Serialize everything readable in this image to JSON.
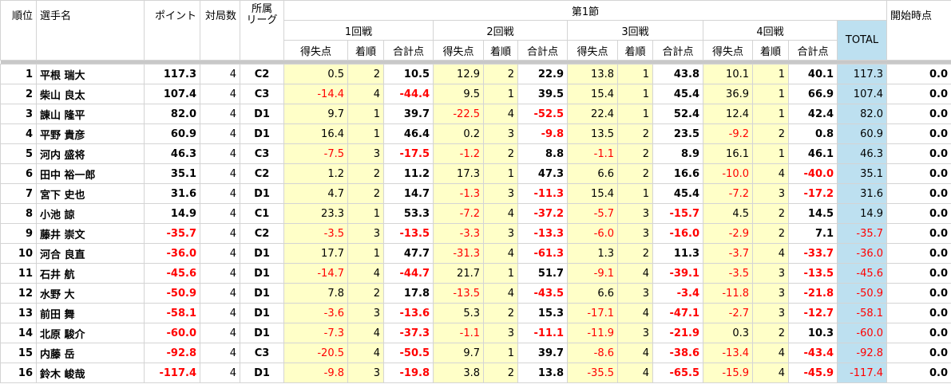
{
  "table": {
    "columns": [
      "順位",
      "選手名",
      "ポイント",
      "対局数",
      "所属\nリーグ"
    ],
    "section": "第1節",
    "rounds": [
      "1回戦",
      "2回戦",
      "3回戦",
      "4回戦"
    ],
    "sub_columns": [
      "得失点",
      "着順",
      "合計点"
    ],
    "total": "TOTAL",
    "start": "開始時点",
    "rows": [
      [
        "1",
        "平根 瑞大",
        "117.3",
        "4",
        "C2",
        "0.5",
        "2",
        "10.5",
        "12.9",
        "2",
        "22.9",
        "13.8",
        "1",
        "43.8",
        "10.1",
        "1",
        "40.1",
        "117.3",
        "0.0"
      ],
      [
        "2",
        "柴山 良太",
        "107.4",
        "4",
        "C3",
        "-14.4",
        "4",
        "-44.4",
        "9.5",
        "1",
        "39.5",
        "15.4",
        "1",
        "45.4",
        "36.9",
        "1",
        "66.9",
        "107.4",
        "0.0"
      ],
      [
        "3",
        "諌山 隆平",
        "82.0",
        "4",
        "D1",
        "9.7",
        "1",
        "39.7",
        "-22.5",
        "4",
        "-52.5",
        "22.4",
        "1",
        "52.4",
        "12.4",
        "1",
        "42.4",
        "82.0",
        "0.0"
      ],
      [
        "4",
        "平野 貴彦",
        "60.9",
        "4",
        "D1",
        "16.4",
        "1",
        "46.4",
        "0.2",
        "3",
        "-9.8",
        "13.5",
        "2",
        "23.5",
        "-9.2",
        "2",
        "0.8",
        "60.9",
        "0.0"
      ],
      [
        "5",
        "河内 盛将",
        "46.3",
        "4",
        "C3",
        "-7.5",
        "3",
        "-17.5",
        "-1.2",
        "2",
        "8.8",
        "-1.1",
        "2",
        "8.9",
        "16.1",
        "1",
        "46.1",
        "46.3",
        "0.0"
      ],
      [
        "6",
        "田中 裕一郎",
        "35.1",
        "4",
        "C2",
        "1.2",
        "2",
        "11.2",
        "17.3",
        "1",
        "47.3",
        "6.6",
        "2",
        "16.6",
        "-10.0",
        "4",
        "-40.0",
        "35.1",
        "0.0"
      ],
      [
        "7",
        "宮下 史也",
        "31.6",
        "4",
        "D1",
        "4.7",
        "2",
        "14.7",
        "-1.3",
        "3",
        "-11.3",
        "15.4",
        "1",
        "45.4",
        "-7.2",
        "3",
        "-17.2",
        "31.6",
        "0.0"
      ],
      [
        "8",
        "小池 諒",
        "14.9",
        "4",
        "C1",
        "23.3",
        "1",
        "53.3",
        "-7.2",
        "4",
        "-37.2",
        "-5.7",
        "3",
        "-15.7",
        "4.5",
        "2",
        "14.5",
        "14.9",
        "0.0"
      ],
      [
        "9",
        "藤井 崇文",
        "-35.7",
        "4",
        "C2",
        "-3.5",
        "3",
        "-13.5",
        "-3.3",
        "3",
        "-13.3",
        "-6.0",
        "3",
        "-16.0",
        "-2.9",
        "2",
        "7.1",
        "-35.7",
        "0.0"
      ],
      [
        "10",
        "河合 良直",
        "-36.0",
        "4",
        "D1",
        "17.7",
        "1",
        "47.7",
        "-31.3",
        "4",
        "-61.3",
        "1.3",
        "2",
        "11.3",
        "-3.7",
        "4",
        "-33.7",
        "-36.0",
        "0.0"
      ],
      [
        "11",
        "石井 航",
        "-45.6",
        "4",
        "D1",
        "-14.7",
        "4",
        "-44.7",
        "21.7",
        "1",
        "51.7",
        "-9.1",
        "4",
        "-39.1",
        "-3.5",
        "3",
        "-13.5",
        "-45.6",
        "0.0"
      ],
      [
        "12",
        "水野 大",
        "-50.9",
        "4",
        "D1",
        "7.8",
        "2",
        "17.8",
        "-13.5",
        "4",
        "-43.5",
        "6.6",
        "3",
        "-3.4",
        "-11.8",
        "3",
        "-21.8",
        "-50.9",
        "0.0"
      ],
      [
        "13",
        "前田 舞",
        "-58.1",
        "4",
        "D1",
        "-3.6",
        "3",
        "-13.6",
        "5.3",
        "2",
        "15.3",
        "-17.1",
        "4",
        "-47.1",
        "-2.7",
        "3",
        "-12.7",
        "-58.1",
        "0.0"
      ],
      [
        "14",
        "北原 駿介",
        "-60.0",
        "4",
        "D1",
        "-7.3",
        "4",
        "-37.3",
        "-1.1",
        "3",
        "-11.1",
        "-11.9",
        "3",
        "-21.9",
        "0.3",
        "2",
        "10.3",
        "-60.0",
        "0.0"
      ],
      [
        "15",
        "内藤 岳",
        "-92.8",
        "4",
        "C3",
        "-20.5",
        "4",
        "-50.5",
        "9.7",
        "1",
        "39.7",
        "-8.6",
        "4",
        "-38.6",
        "-13.4",
        "4",
        "-43.4",
        "-92.8",
        "0.0"
      ],
      [
        "16",
        "鈴木 峻哉",
        "-117.4",
        "4",
        "D1",
        "-9.8",
        "3",
        "-19.8",
        "3.8",
        "2",
        "13.8",
        "-35.5",
        "4",
        "-65.5",
        "-15.9",
        "4",
        "-45.9",
        "-117.4",
        "0.0"
      ]
    ]
  }
}
